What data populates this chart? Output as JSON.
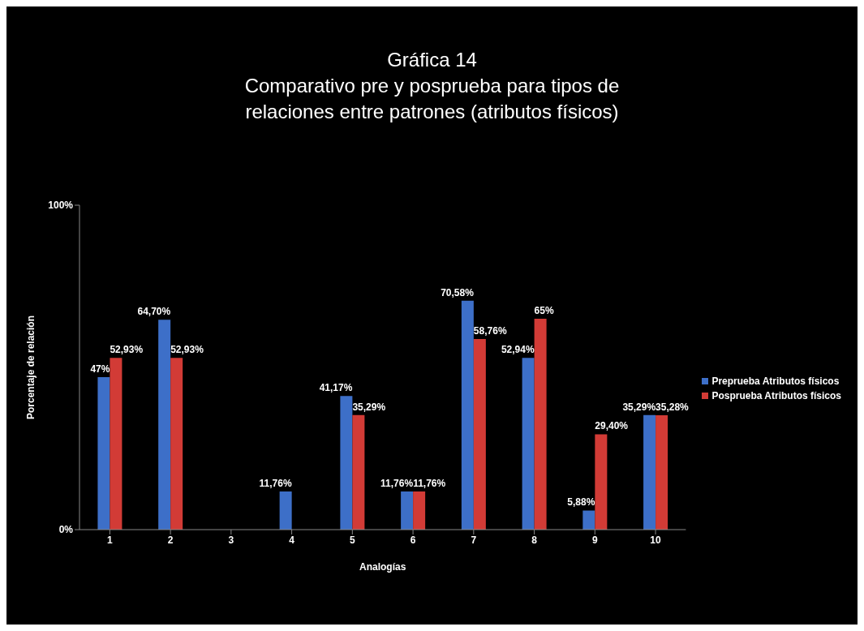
{
  "chart_data": {
    "type": "bar",
    "title": "Gráfica 14",
    "subtitle": "Comparativo pre y posprueba para tipos de relaciones entre patrones (atributos físicos)",
    "xlabel": "Analogías",
    "ylabel": "Porcentaje de relación",
    "categories": [
      "1",
      "2",
      "3",
      "4",
      "5",
      "6",
      "7",
      "8",
      "9",
      "10"
    ],
    "series": [
      {
        "name": "Preprueba Atributos físicos",
        "color": "#3d6fc8",
        "values": [
          47,
          64.7,
          null,
          11.76,
          41.17,
          11.76,
          70.58,
          52.94,
          5.88,
          35.29
        ],
        "value_labels": [
          "47%",
          "64,70%",
          null,
          "11,76%",
          "41,17%",
          "11,76%",
          "70,58%",
          "52,94%",
          "5,88%",
          "35,29%"
        ]
      },
      {
        "name": "Posprueba Atributos físicos",
        "color": "#d23b36",
        "values": [
          52.93,
          52.93,
          null,
          null,
          35.29,
          11.76,
          58.76,
          65,
          29.4,
          35.28
        ],
        "value_labels": [
          "52,93%",
          "52,93%",
          null,
          null,
          "35,29%",
          "11,76%",
          "58,76%",
          "65%",
          "29,40%",
          "35,28%"
        ]
      }
    ],
    "ylim": [
      0,
      100
    ],
    "yticks": [
      {
        "value": 0,
        "label": "0%"
      },
      {
        "value": 100,
        "label": "100%"
      }
    ],
    "legend": "right"
  }
}
